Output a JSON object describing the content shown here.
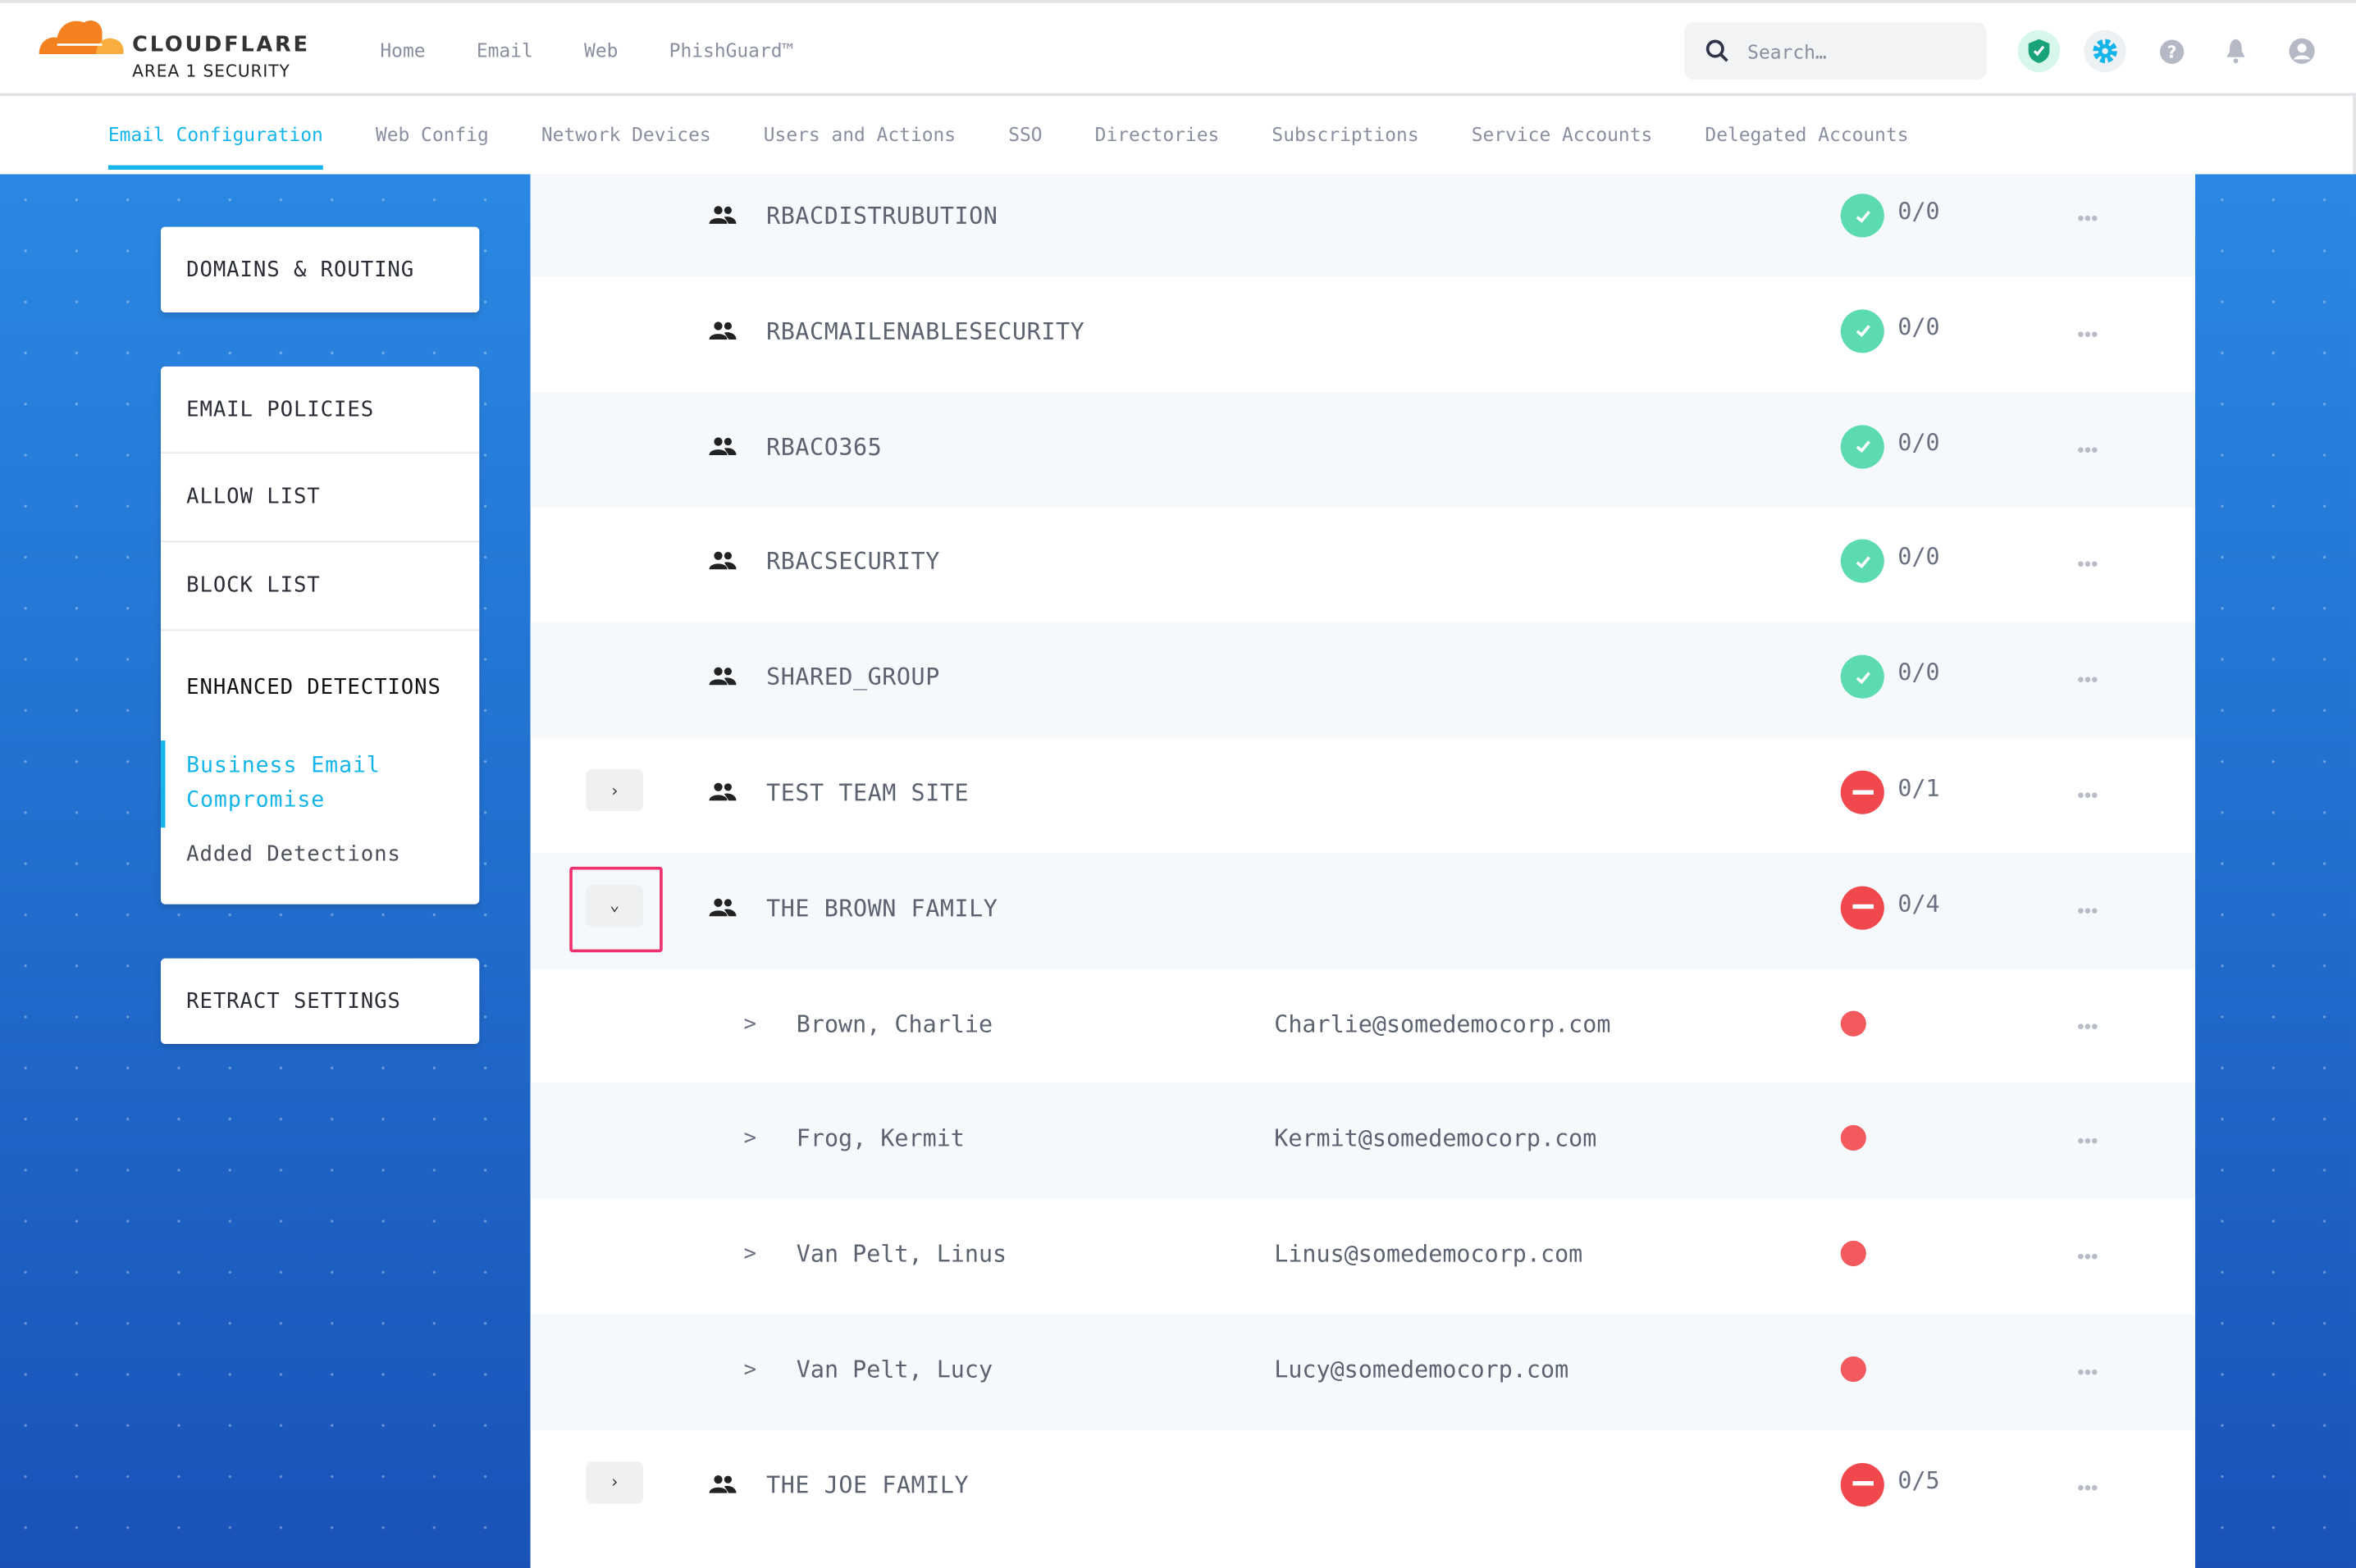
{
  "brand": {
    "name": "CLOUDFLARE",
    "product": "AREA 1 SECURITY",
    "accent": "#13b5ea"
  },
  "topnav": [
    "Home",
    "Email",
    "Web",
    "PhishGuard™"
  ],
  "search": {
    "placeholder": "Search…"
  },
  "header_icons": [
    "shield-check-icon",
    "gear-icon",
    "help-icon",
    "bell-icon",
    "user-icon"
  ],
  "subnav": {
    "active": 0,
    "tabs": [
      "Email Configuration",
      "Web Config",
      "Network Devices",
      "Users and Actions",
      "SSO",
      "Directories",
      "Subscriptions",
      "Service Accounts",
      "Delegated Accounts"
    ]
  },
  "sidebar": {
    "domains": "DOMAINS & ROUTING",
    "policies": [
      "EMAIL POLICIES",
      "ALLOW LIST",
      "BLOCK LIST"
    ],
    "enhanced": "ENHANCED DETECTIONS",
    "bec": "Business Email Compromise",
    "added": "Added Detections",
    "retract": "RETRACT SETTINGS"
  },
  "rows": [
    {
      "type": "group",
      "name": "RBACDISTRUBUTION",
      "status": "ok",
      "count": "0/0",
      "expandable": false
    },
    {
      "type": "group",
      "name": "RBACMAILENABLESECURITY",
      "status": "ok",
      "count": "0/0",
      "expandable": false
    },
    {
      "type": "group",
      "name": "RBACO365",
      "status": "ok",
      "count": "0/0",
      "expandable": false
    },
    {
      "type": "group",
      "name": "RBACSECURITY",
      "status": "ok",
      "count": "0/0",
      "expandable": false
    },
    {
      "type": "group",
      "name": "SHARED_GROUP",
      "status": "ok",
      "count": "0/0",
      "expandable": false
    },
    {
      "type": "group",
      "name": "TEST TEAM SITE",
      "status": "bad",
      "count": "0/1",
      "expandable": true,
      "expanded": false
    },
    {
      "type": "group",
      "name": "THE BROWN FAMILY",
      "status": "bad",
      "count": "0/4",
      "expandable": true,
      "expanded": true,
      "highlighted": true
    },
    {
      "type": "member",
      "name": "Brown, Charlie",
      "email": "Charlie@somedemocorp.com"
    },
    {
      "type": "member",
      "name": "Frog, Kermit",
      "email": "Kermit@somedemocorp.com"
    },
    {
      "type": "member",
      "name": "Van Pelt, Linus",
      "email": "Linus@somedemocorp.com"
    },
    {
      "type": "member",
      "name": "Van Pelt, Lucy",
      "email": "Lucy@somedemocorp.com"
    },
    {
      "type": "group",
      "name": "THE JOE FAMILY",
      "status": "bad",
      "count": "0/5",
      "expandable": true,
      "expanded": false
    }
  ]
}
